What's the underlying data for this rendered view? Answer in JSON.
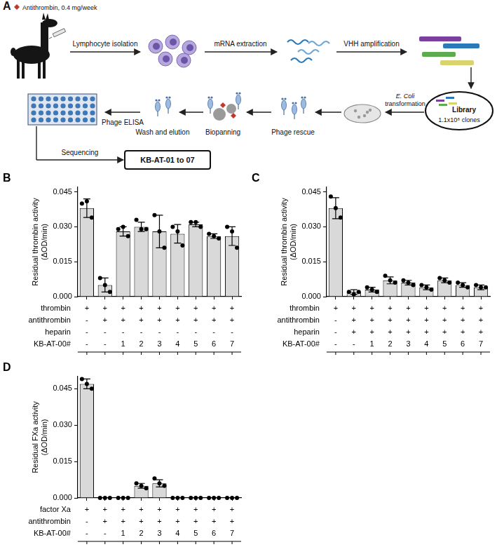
{
  "diagram": {
    "panel": "A",
    "antigen": "Antithrombin, 0.4 mg/week",
    "steps": {
      "lymphocytes": "Lymphocyte isolation",
      "mrna": "mRNA extraction",
      "vhh": "VHH amplification",
      "library": [
        "Library",
        "1.1x10⁸ clones"
      ],
      "transformation": [
        "E. Coli",
        "transformation"
      ],
      "rescue": "Phage rescue",
      "biopanning": "Biopanning",
      "wash": "Wash and elution",
      "elisa": "Phage ELISA",
      "sequencing": "Sequencing",
      "result": "KB-AT-01 to 07"
    }
  },
  "chart_data": [
    {
      "panel": "B",
      "type": "bar",
      "y_label": [
        "Residual thrombin activity",
        "(ΔOD/min)"
      ],
      "categories": [
        null,
        null,
        null,
        null,
        null,
        null,
        null,
        null,
        null
      ],
      "values": [
        0.038,
        0.005,
        0.028,
        0.03,
        0.028,
        0.027,
        0.031,
        0.026,
        0.026
      ],
      "errors": [
        0.004,
        0.003,
        0.002,
        0.002,
        0.007,
        0.004,
        0.001,
        0.001,
        0.004
      ],
      "points": [
        [
          0.04,
          0.041,
          0.034
        ],
        [
          0.008,
          0.005,
          0.002
        ],
        [
          0.029,
          0.03,
          0.026
        ],
        [
          0.033,
          0.029,
          0.029
        ],
        [
          0.035,
          0.028,
          0.021
        ],
        [
          0.03,
          0.028,
          0.022
        ],
        [
          0.032,
          0.032,
          0.03
        ],
        [
          0.027,
          0.026,
          0.025
        ],
        [
          0.03,
          0.028,
          0.021
        ]
      ],
      "color": "#d9d9d9",
      "ylim": [
        0,
        0.047
      ],
      "yticks": [
        {
          "value": 0,
          "label": "0.000"
        },
        0.015,
        {
          "value": 0.03,
          "label": "0.030"
        },
        0.045
      ],
      "grid": false,
      "conditions": [
        {
          "name": "thrombin",
          "marks": [
            "+",
            "+",
            "+",
            "+",
            "+",
            "+",
            "+",
            "+",
            "+"
          ]
        },
        {
          "name": "antithrombin",
          "marks": [
            "-",
            "+",
            "+",
            "+",
            "+",
            "+",
            "+",
            "+",
            "+"
          ]
        },
        {
          "name": "heparin",
          "marks": [
            "-",
            "-",
            "-",
            "-",
            "-",
            "-",
            "-",
            "-",
            "-"
          ]
        },
        {
          "name": "KB-AT-00#",
          "marks": [
            "-",
            "-",
            "1",
            "2",
            "3",
            "4",
            "5",
            "6",
            "7"
          ]
        }
      ]
    },
    {
      "panel": "C",
      "type": "bar",
      "y_label": [
        "Residual thrombin activity",
        "(ΔOD/min)"
      ],
      "categories": [
        null,
        null,
        null,
        null,
        null,
        null,
        null,
        null,
        null
      ],
      "values": [
        0.038,
        0.002,
        0.003,
        0.007,
        0.006,
        0.004,
        0.007,
        0.005,
        0.004
      ],
      "errors": [
        0.0045,
        0.001,
        0.001,
        0.0015,
        0.001,
        0.001,
        0.001,
        0.001,
        0.001
      ],
      "points": [
        [
          0.043,
          0.038,
          0.034
        ],
        [
          0.002,
          0.001,
          0.002
        ],
        [
          0.004,
          0.003,
          0.002
        ],
        [
          0.009,
          0.007,
          0.006
        ],
        [
          0.007,
          0.006,
          0.005
        ],
        [
          0.005,
          0.004,
          0.003
        ],
        [
          0.008,
          0.007,
          0.006
        ],
        [
          0.006,
          0.005,
          0.004
        ],
        [
          0.005,
          0.004,
          0.004
        ]
      ],
      "color": "#d9d9d9",
      "ylim": [
        0,
        0.047
      ],
      "yticks": [
        {
          "value": 0,
          "label": "0.000"
        },
        0.015,
        {
          "value": 0.03,
          "label": "0.030"
        },
        0.045
      ],
      "grid": false,
      "conditions": [
        {
          "name": "thrombin",
          "marks": [
            "+",
            "+",
            "+",
            "+",
            "+",
            "+",
            "+",
            "+",
            "+"
          ]
        },
        {
          "name": "antithrombin",
          "marks": [
            "-",
            "+",
            "+",
            "+",
            "+",
            "+",
            "+",
            "+",
            "+"
          ]
        },
        {
          "name": "heparin",
          "marks": [
            "-",
            "+",
            "+",
            "+",
            "+",
            "+",
            "+",
            "+",
            "+"
          ]
        },
        {
          "name": "KB-AT-00#",
          "marks": [
            "-",
            "-",
            "1",
            "2",
            "3",
            "4",
            "5",
            "6",
            "7"
          ]
        }
      ]
    },
    {
      "panel": "D",
      "type": "bar",
      "y_label": [
        "Residual FXa activity",
        "(ΔOD/min)"
      ],
      "categories": [
        null,
        null,
        null,
        null,
        null,
        null,
        null,
        null,
        null
      ],
      "values": [
        0.047,
        0,
        0,
        0.005,
        0.006,
        0,
        0,
        0,
        0
      ],
      "errors": [
        0.002,
        0,
        0,
        0.001,
        0.0015,
        0,
        0,
        0,
        0
      ],
      "points": [
        [
          0.049,
          0.047,
          0.045
        ],
        [
          0,
          0,
          0
        ],
        [
          0,
          0,
          0
        ],
        [
          0.006,
          0.005,
          0.004
        ],
        [
          0.008,
          0.006,
          0.005
        ],
        [
          0,
          0,
          0
        ],
        [
          0,
          0,
          0
        ],
        [
          0,
          0,
          0
        ],
        [
          0,
          0,
          0
        ]
      ],
      "color": "#d9d9d9",
      "ylim": [
        0,
        0.05
      ],
      "yticks": [
        {
          "value": 0,
          "label": "0.000"
        },
        0.015,
        {
          "value": 0.03,
          "label": "0.030"
        },
        0.045
      ],
      "grid": false,
      "conditions": [
        {
          "name": "factor Xa",
          "marks": [
            "+",
            "+",
            "+",
            "+",
            "+",
            "+",
            "+",
            "+",
            "+"
          ]
        },
        {
          "name": "antithrombin",
          "marks": [
            "-",
            "+",
            "+",
            "+",
            "+",
            "+",
            "+",
            "+",
            "+"
          ]
        },
        {
          "name": "KB-AT-00#",
          "marks": [
            "-",
            "-",
            "1",
            "2",
            "3",
            "4",
            "5",
            "6",
            "7"
          ]
        }
      ]
    }
  ]
}
